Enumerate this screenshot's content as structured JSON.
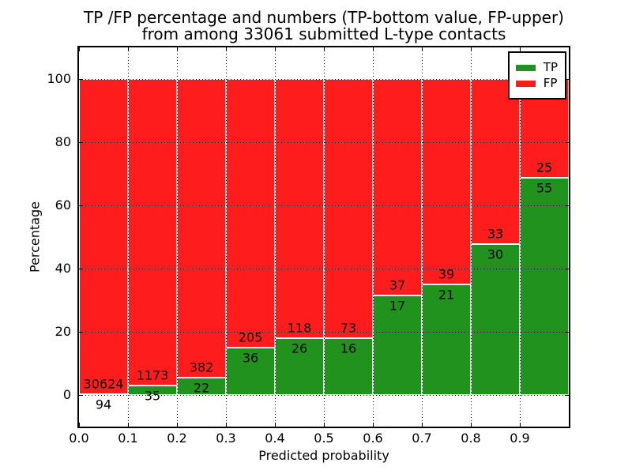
{
  "chart_data": {
    "type": "bar",
    "stacked": true,
    "normalized": "percent",
    "title": "TP /FP percentage and numbers (TP-bottom value, FP-upper)",
    "subtitle": "from among 33061 submitted L-type contacts",
    "xlabel": "Predicted probability",
    "ylabel": "Percentage",
    "bin_width": 0.1,
    "categories": [
      "0.0",
      "0.1",
      "0.2",
      "0.3",
      "0.4",
      "0.5",
      "0.6",
      "0.7",
      "0.8",
      "0.9"
    ],
    "series": [
      {
        "name": "TP",
        "stack_position": "bottom",
        "color": "#22921e",
        "counts": [
          94,
          35,
          22,
          36,
          26,
          16,
          17,
          21,
          30,
          55
        ]
      },
      {
        "name": "FP",
        "stack_position": "top",
        "color": "#ff1c1c",
        "counts": [
          30624,
          1173,
          382,
          205,
          118,
          73,
          37,
          39,
          33,
          25
        ]
      }
    ],
    "tp_percent_of_bin": [
      0.31,
      2.9,
      5.45,
      14.94,
      18.06,
      17.98,
      31.48,
      35.0,
      47.62,
      68.75
    ],
    "xtick_labels": [
      "0.0",
      "0.1",
      "0.2",
      "0.3",
      "0.4",
      "0.5",
      "0.6",
      "0.7",
      "0.8",
      "0.9"
    ],
    "ytick_values": [
      0,
      20,
      40,
      60,
      80,
      100
    ],
    "ytick_labels": [
      "0",
      "20",
      "40",
      "60",
      "80",
      "100"
    ],
    "xlim": [
      0.0,
      1.0
    ],
    "ylim": [
      -10,
      110
    ],
    "grid": "dotted, both axes, drawn over bars",
    "legend": {
      "position": "upper right",
      "entries": [
        {
          "label": "TP",
          "color": "#22921e"
        },
        {
          "label": "FP",
          "color": "#ff1c1c"
        }
      ]
    },
    "colors": {
      "tp_bar": "#22921e",
      "fp_bar": "#ff1c1c",
      "bar_edge": "#ffffff",
      "frame": "#000000",
      "text": "#000000",
      "background": "#ffffff"
    }
  }
}
